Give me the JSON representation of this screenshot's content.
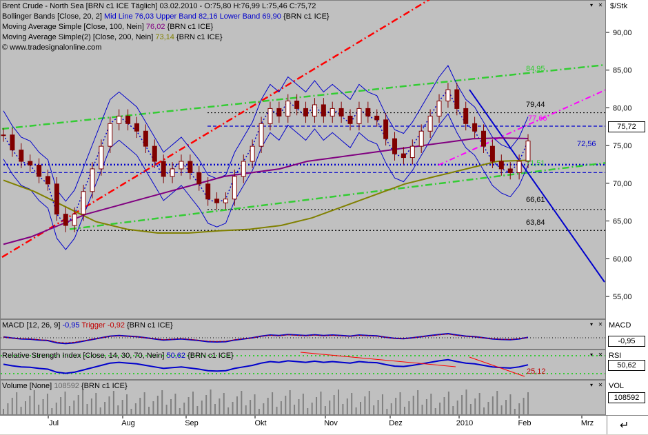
{
  "main": {
    "legend": [
      "Brent Crude - North Sea [BRN c1 ICE  Täglich] 03.02.2010 - O:75,80 H:76,99 L:75,46 C:75,72",
      "Bollinger Bands [Close, 20, 2]",
      "Moving Average Simple [Close, 100, Nein]",
      "Moving Average Simple(2) [Close, 200, Nein]",
      "© www.tradesignalonline.com"
    ],
    "bb_mid": "Mid Line 76,03",
    "bb_upper": "Upper Band 82,16",
    "bb_lower": "Lower Band 69,90",
    "bb_sym": "{BRN c1 ICE}",
    "ma100_val": "76,02",
    "ma100_sym": "{BRN c1 ICE}",
    "ma200_val": "73,14",
    "ma200_sym": "{BRN c1 ICE}",
    "unit": "$/Stk",
    "price_label": "75,72",
    "annotations": {
      "a8495": "84,95",
      "a7944": "79,44",
      "a7766": "77,66",
      "a7256": "72,56",
      "a7151": "71,51",
      "a6661": "66,61",
      "a6384": "63,84"
    }
  },
  "macd": {
    "legend": "MACD [12, 26, 9]",
    "value": "-0,95",
    "trigger": "Trigger -0,92",
    "sym": "{BRN c1 ICE}",
    "axis_title": "MACD",
    "box": "-0,95"
  },
  "rsi": {
    "legend": "Relative Strength Index [Close, 14, 30, 70, Nein]",
    "value": "50,62",
    "sym": "{BRN c1 ICE}",
    "axis_title": "RSI",
    "box": "50,62",
    "annotation": "25,12"
  },
  "volume": {
    "legend": "Volume [None]",
    "value": "108592",
    "sym": "{BRN c1 ICE}",
    "axis_title": "VOL",
    "box": "108592"
  },
  "months": [
    "Jul",
    "Aug",
    "Sep",
    "Okt",
    "Nov",
    "Dez",
    "2010",
    "Feb",
    "Mrz"
  ],
  "chart_data": {
    "type": "line",
    "title": "Brent Crude - North Sea",
    "ylabel": "$/Stk",
    "ylim": [
      52,
      96
    ],
    "yticks": [
      55,
      60,
      65,
      70,
      75,
      80,
      85,
      90
    ],
    "ytick_labels": [
      "55,00",
      "60,00",
      "65,00",
      "70,00",
      "75,00",
      "80,00",
      "85,00",
      "90,00"
    ],
    "x_months": [
      "Jul",
      "Aug",
      "Sep",
      "Okt",
      "Nov",
      "Dez",
      "2010",
      "Feb",
      "Mrz"
    ],
    "last": {
      "open": 75.8,
      "high": 76.99,
      "low": 75.46,
      "close": 75.72
    },
    "horizontal_levels": [
      79.44,
      77.66,
      72.56,
      71.51,
      66.61,
      63.84
    ],
    "close_series": [
      76.5,
      74.5,
      73,
      72.5,
      71,
      70,
      66,
      64.5,
      66,
      69,
      72,
      75,
      78,
      79,
      78,
      77,
      75,
      73,
      71,
      72,
      73,
      71.5,
      70,
      68,
      67.5,
      68,
      71,
      73,
      75,
      78,
      80,
      79,
      81,
      80,
      79,
      80.5,
      79,
      80,
      79,
      78,
      80,
      79,
      78.5,
      76,
      74,
      73.5,
      75,
      77,
      79,
      81,
      82.5,
      80,
      78,
      77,
      75,
      73,
      72,
      71.5,
      73,
      75.7
    ],
    "ma100_series": [
      62,
      63,
      64.5,
      66,
      67,
      68,
      69,
      70,
      71,
      71.5,
      72,
      73,
      73.5,
      74,
      74.5,
      75,
      75.5,
      76,
      76.1,
      76.02
    ],
    "ma200_series": [
      70.5,
      69,
      67,
      65,
      64,
      63.5,
      63.5,
      63.8,
      64,
      64.5,
      65.5,
      67,
      68.5,
      70,
      71,
      72,
      73,
      73.14
    ],
    "bb_upper": 82.16,
    "bb_mid": 76.03,
    "bb_lower": 69.9,
    "series": [
      {
        "name": "MACD [12, 26, 9]",
        "last": -0.95
      },
      {
        "name": "Trigger",
        "last": -0.92
      },
      {
        "name": "Relative Strength Index [Close, 14, 30, 70, Nein]",
        "last": 50.62
      },
      {
        "name": "Volume [None]",
        "last": 108592
      }
    ]
  },
  "colors": {
    "pane_bg": "#c0c0c0",
    "candles": "#800000",
    "bb": "#0000cc",
    "ma100": "#800080",
    "ma200": "#808000",
    "red_trend": "#ff0000",
    "green_trend": "#33cc33",
    "blue_trend": "#0000cc",
    "magenta_trend": "#ff00ff"
  }
}
